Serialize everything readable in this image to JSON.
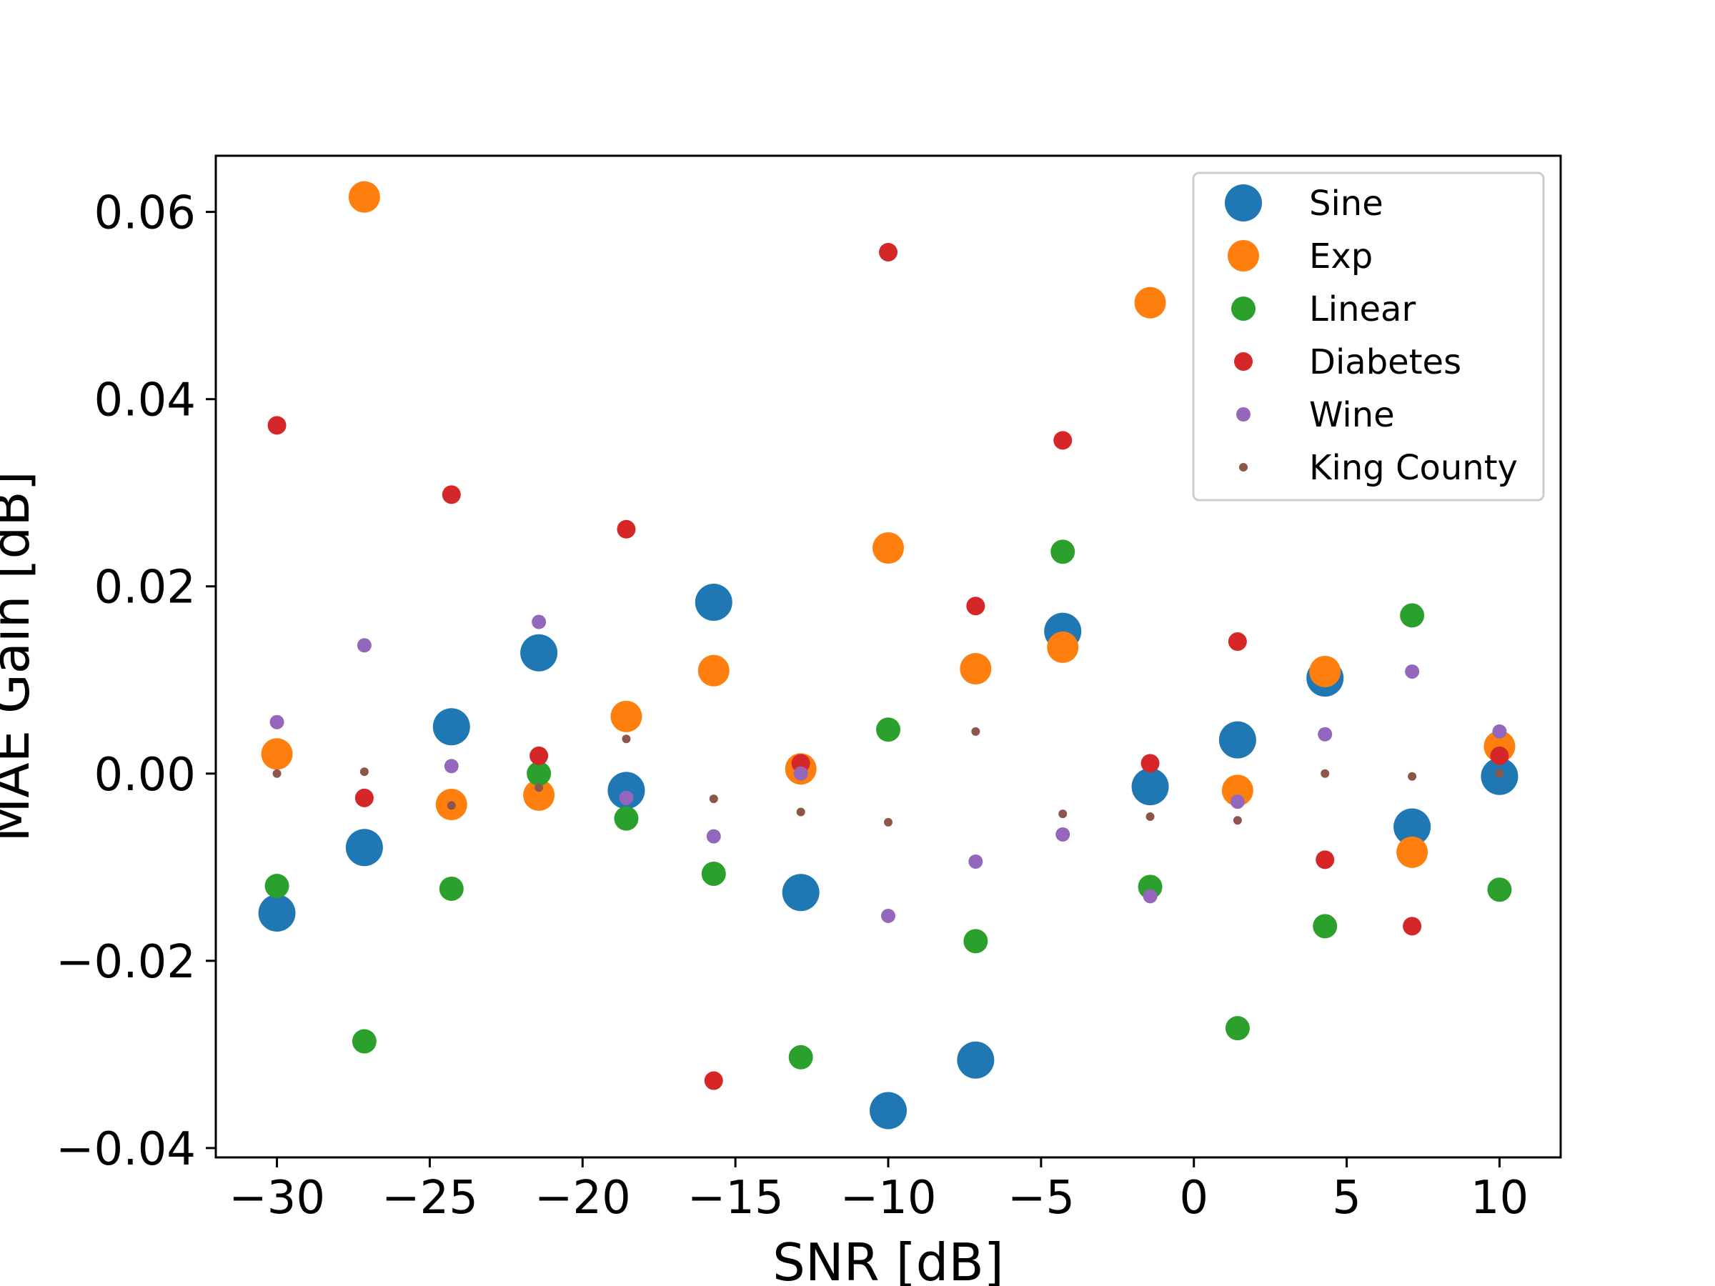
{
  "chart_data": {
    "type": "scatter",
    "title": "",
    "xlabel": "SNR [dB]",
    "ylabel": "MAE Gain [dB]",
    "xlim": [
      -32,
      12
    ],
    "ylim": [
      -0.041,
      0.066
    ],
    "grid": false,
    "legend_position": "top-right",
    "x": [
      -30,
      -27.14,
      -24.29,
      -21.43,
      -18.57,
      -15.71,
      -12.86,
      -10,
      -7.14,
      -4.29,
      -1.43,
      1.43,
      4.29,
      7.14,
      10
    ],
    "xticks": [
      -30,
      -25,
      -20,
      -15,
      -10,
      -5,
      0,
      5,
      10
    ],
    "xtick_labels": [
      "−30",
      "−25",
      "−20",
      "−15",
      "−10",
      "−5",
      "0",
      "5",
      "10"
    ],
    "yticks": [
      -0.04,
      -0.02,
      0.0,
      0.02,
      0.04,
      0.06
    ],
    "ytick_labels": [
      "−0.04",
      "−0.02",
      "0.00",
      "0.02",
      "0.04",
      "0.06"
    ],
    "series": [
      {
        "name": "Sine",
        "color": "#1f77b4",
        "marker_size": "largest",
        "values": [
          -0.0149,
          -0.0079,
          0.005,
          0.0129,
          -0.0018,
          0.0183,
          -0.0127,
          -0.036,
          -0.0306,
          0.0152,
          -0.0014,
          0.0036,
          0.0102,
          -0.0057,
          -0.0003
        ]
      },
      {
        "name": "Exp",
        "color": "#ff7f0e",
        "marker_size": "large",
        "values": [
          0.0021,
          0.0616,
          -0.0033,
          -0.0023,
          0.0061,
          0.011,
          0.0005,
          0.0241,
          0.0112,
          0.0135,
          0.0503,
          -0.0018,
          0.0109,
          -0.0084,
          0.0029
        ]
      },
      {
        "name": "Linear",
        "color": "#2ca02c",
        "marker_size": "medium",
        "values": [
          -0.012,
          -0.0286,
          -0.0123,
          0.0,
          -0.0048,
          -0.0107,
          -0.0303,
          0.0047,
          -0.0179,
          0.0237,
          -0.0121,
          -0.0272,
          -0.0163,
          0.0169,
          -0.0124
        ]
      },
      {
        "name": "Diabetes",
        "color": "#d62728",
        "marker_size": "small",
        "values": [
          0.0372,
          -0.0026,
          0.0298,
          0.0019,
          0.0261,
          -0.0328,
          0.0011,
          0.0557,
          0.0179,
          0.0356,
          0.0011,
          0.0141,
          -0.0092,
          -0.0163,
          0.0019
        ]
      },
      {
        "name": "Wine",
        "color": "#9467bd",
        "marker_size": "smaller",
        "values": [
          0.0055,
          0.0137,
          0.0008,
          0.0162,
          -0.0026,
          -0.0067,
          0.0,
          -0.0152,
          -0.0094,
          -0.0065,
          -0.0131,
          -0.003,
          0.0042,
          0.0109,
          0.0045
        ]
      },
      {
        "name": "King County",
        "color": "#8c564b",
        "marker_size": "smallest",
        "values": [
          0.0,
          0.0002,
          -0.0034,
          -0.0015,
          0.0037,
          -0.0027,
          -0.0041,
          -0.0052,
          0.0045,
          -0.0043,
          -0.0046,
          -0.005,
          0.0,
          -0.0003,
          0.0
        ]
      }
    ]
  }
}
